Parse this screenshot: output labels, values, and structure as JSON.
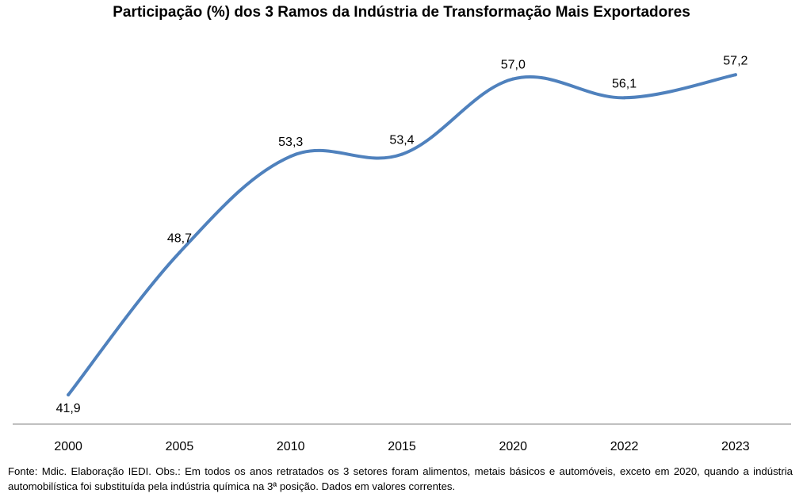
{
  "chart_data": {
    "type": "line",
    "title": "Participação (%) dos 3 Ramos da Indústria de Transformação Mais Exportadores",
    "categories": [
      "2000",
      "2005",
      "2010",
      "2015",
      "2020",
      "2022",
      "2023"
    ],
    "series": [
      {
        "values": [
          41.9,
          48.7,
          53.3,
          53.4,
          57.0,
          56.1,
          57.2
        ],
        "labels": [
          "41,9",
          "48,7",
          "53,3",
          "53,4",
          "57,0",
          "56,1",
          "57,2"
        ],
        "color": "#4f81bd"
      }
    ],
    "xlabel": "",
    "ylabel": "",
    "ylim": [
      40.5,
      58.5
    ],
    "grid": false,
    "legend": "none",
    "axis_color": "#808080"
  },
  "footnote": "Fonte: Mdic. Elaboração IEDI. Obs.: Em todos os anos retratados os 3 setores foram alimentos, metais básicos e automóveis, exceto em 2020, quando a indústria automobilística foi substituída pela indústria química na 3ª posição. Dados em valores correntes."
}
